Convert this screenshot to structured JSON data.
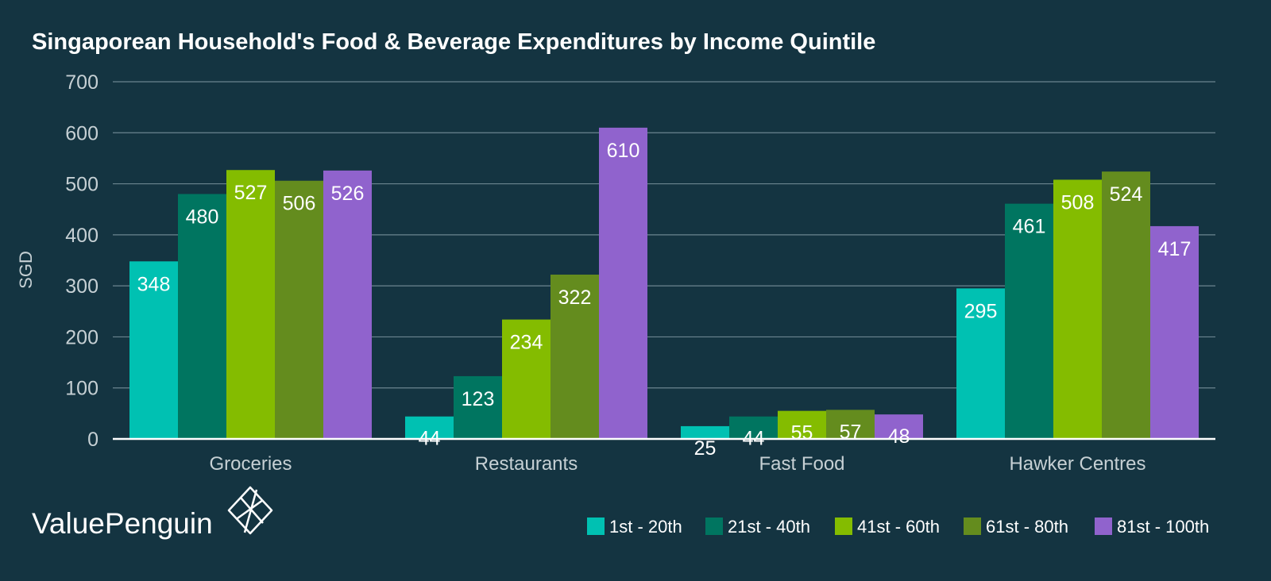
{
  "chart_data": {
    "type": "bar",
    "title": "Singaporean Household's Food & Beverage Expenditures by Income Quintile",
    "xlabel": "",
    "ylabel": "SGD",
    "ylim": [
      0,
      700
    ],
    "yticks": [
      0,
      100,
      200,
      300,
      400,
      500,
      600,
      700
    ],
    "grid": true,
    "legend_position": "bottom-right",
    "categories": [
      "Groceries",
      "Restaurants",
      "Fast Food",
      "Hawker Centres"
    ],
    "series": [
      {
        "name": "1st - 20th",
        "color": "#00c1b2",
        "values": [
          348,
          44,
          25,
          295
        ]
      },
      {
        "name": "21st - 40th",
        "color": "#007560",
        "values": [
          480,
          123,
          44,
          461
        ]
      },
      {
        "name": "41st - 60th",
        "color": "#84bc00",
        "values": [
          527,
          234,
          55,
          508
        ]
      },
      {
        "name": "61st - 80th",
        "color": "#648c1e",
        "values": [
          506,
          322,
          57,
          524
        ]
      },
      {
        "name": "81st - 100th",
        "color": "#9063cd",
        "values": [
          526,
          610,
          48,
          417
        ]
      }
    ]
  },
  "brand": {
    "name": "ValuePenguin"
  },
  "colors": {
    "background": "#143441",
    "grid": "#6b8590",
    "text": "#ffffff",
    "axis_text": "#c6d0d4"
  }
}
